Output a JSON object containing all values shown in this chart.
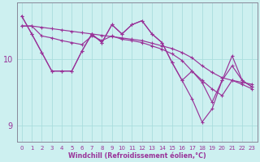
{
  "xlabel": "Windchill (Refroidissement éolien,°C)",
  "background_color": "#cdf0f0",
  "line_color": "#993399",
  "grid_color": "#aadddd",
  "xlim": [
    -0.5,
    23.5
  ],
  "ylim": [
    8.75,
    10.85
  ],
  "yticks": [
    9,
    10
  ],
  "xticks": [
    0,
    1,
    2,
    3,
    4,
    5,
    6,
    7,
    8,
    9,
    10,
    11,
    12,
    13,
    14,
    15,
    16,
    17,
    18,
    19,
    20,
    21,
    22,
    23
  ],
  "series": [
    [
      10.5,
      10.5,
      10.48,
      10.46,
      10.44,
      10.42,
      10.4,
      10.38,
      10.36,
      10.34,
      10.32,
      10.3,
      10.28,
      10.24,
      10.2,
      10.16,
      10.1,
      10.02,
      9.9,
      9.8,
      9.72,
      9.68,
      9.65,
      9.62
    ],
    [
      10.65,
      10.38,
      10.1,
      9.82,
      9.82,
      9.82,
      10.12,
      10.38,
      10.25,
      10.52,
      10.38,
      10.52,
      10.58,
      10.38,
      10.25,
      9.95,
      9.68,
      9.4,
      9.05,
      9.25,
      9.68,
      9.9,
      9.68,
      9.58
    ],
    [
      10.65,
      10.38,
      10.1,
      9.82,
      9.82,
      9.82,
      10.12,
      10.38,
      10.25,
      10.52,
      10.38,
      10.52,
      10.58,
      10.38,
      10.25,
      9.95,
      9.68,
      9.82,
      9.65,
      9.35,
      9.68,
      10.05,
      9.68,
      9.58
    ],
    [
      10.5,
      10.5,
      10.35,
      10.32,
      10.28,
      10.25,
      10.22,
      10.35,
      10.28,
      10.35,
      10.3,
      10.28,
      10.25,
      10.2,
      10.15,
      10.08,
      9.98,
      9.82,
      9.68,
      9.55,
      9.45,
      9.68,
      9.62,
      9.55
    ]
  ]
}
